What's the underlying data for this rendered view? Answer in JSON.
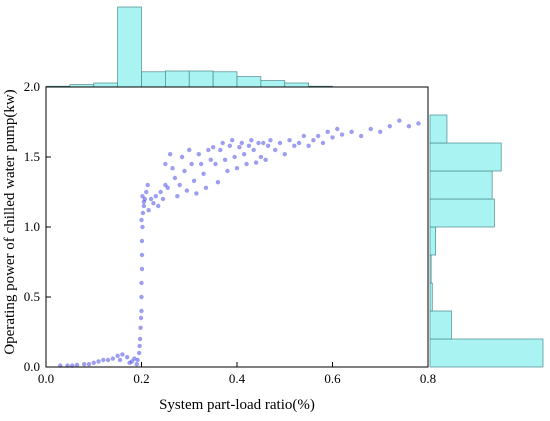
{
  "chart_data": {
    "type": "scatter",
    "title": "",
    "xlabel": "System part-load ratio(%)",
    "ylabel": "Operating power of chilled water pump(kw)",
    "xlim": [
      0.0,
      0.8
    ],
    "ylim": [
      0.0,
      2.0
    ],
    "x_ticks": [
      "0.0",
      "0.2",
      "0.4",
      "0.6",
      "0.8"
    ],
    "y_ticks": [
      "0.0",
      "0.5",
      "1.0",
      "1.5",
      "2.0"
    ],
    "grid": false,
    "colors": {
      "points": "#2727dd",
      "histogram_fill": "#aaf3f3",
      "histogram_edge": "#4a8a8a"
    },
    "x_histogram": {
      "bin_edges": [
        0.0,
        0.05,
        0.1,
        0.15,
        0.2,
        0.25,
        0.3,
        0.35,
        0.4,
        0.45,
        0.5,
        0.55,
        0.6
      ],
      "relative_heights": [
        0.01,
        0.03,
        0.05,
        1.0,
        0.19,
        0.2,
        0.2,
        0.19,
        0.13,
        0.08,
        0.05,
        0.01
      ]
    },
    "y_histogram": {
      "bin_edges": [
        0.0,
        0.2,
        0.4,
        0.6,
        0.8,
        1.0,
        1.2,
        1.4,
        1.6,
        1.8
      ],
      "relative_heights": [
        1.0,
        0.19,
        0.02,
        0.01,
        0.05,
        0.57,
        0.55,
        0.63,
        0.15
      ]
    },
    "series": [
      {
        "points": [
          [
            0.03,
            0.01
          ],
          [
            0.045,
            0.01
          ],
          [
            0.055,
            0.01
          ],
          [
            0.065,
            0.015
          ],
          [
            0.08,
            0.02
          ],
          [
            0.09,
            0.02
          ],
          [
            0.1,
            0.03
          ],
          [
            0.11,
            0.04
          ],
          [
            0.12,
            0.05
          ],
          [
            0.13,
            0.05
          ],
          [
            0.14,
            0.06
          ],
          [
            0.15,
            0.08
          ],
          [
            0.155,
            0.05
          ],
          [
            0.16,
            0.09
          ],
          [
            0.17,
            0.07
          ],
          [
            0.175,
            0.03
          ],
          [
            0.18,
            0.04
          ],
          [
            0.185,
            0.06
          ],
          [
            0.19,
            0.02
          ],
          [
            0.192,
            0.05
          ],
          [
            0.195,
            0.1
          ],
          [
            0.196,
            0.15
          ],
          [
            0.197,
            0.2
          ],
          [
            0.198,
            0.28
          ],
          [
            0.199,
            0.35
          ],
          [
            0.2,
            0.4
          ],
          [
            0.2,
            0.5
          ],
          [
            0.2,
            0.6
          ],
          [
            0.201,
            0.7
          ],
          [
            0.201,
            0.8
          ],
          [
            0.201,
            0.9
          ],
          [
            0.202,
            1.0
          ],
          [
            0.2,
            1.05
          ],
          [
            0.203,
            1.1
          ],
          [
            0.205,
            1.15
          ],
          [
            0.207,
            1.2
          ],
          [
            0.21,
            1.25
          ],
          [
            0.213,
            1.3
          ],
          [
            0.202,
            1.22
          ],
          [
            0.205,
            1.18
          ],
          [
            0.215,
            1.12
          ],
          [
            0.22,
            1.2
          ],
          [
            0.225,
            1.17
          ],
          [
            0.23,
            1.22
          ],
          [
            0.235,
            1.15
          ],
          [
            0.24,
            1.25
          ],
          [
            0.245,
            1.2
          ],
          [
            0.25,
            1.45
          ],
          [
            0.25,
            1.3
          ],
          [
            0.255,
            1.28
          ],
          [
            0.26,
            1.52
          ],
          [
            0.265,
            1.42
          ],
          [
            0.27,
            1.35
          ],
          [
            0.275,
            1.22
          ],
          [
            0.28,
            1.3
          ],
          [
            0.285,
            1.5
          ],
          [
            0.29,
            1.4
          ],
          [
            0.295,
            1.26
          ],
          [
            0.3,
            1.55
          ],
          [
            0.305,
            1.45
          ],
          [
            0.31,
            1.33
          ],
          [
            0.315,
            1.24
          ],
          [
            0.32,
            1.52
          ],
          [
            0.325,
            1.45
          ],
          [
            0.33,
            1.38
          ],
          [
            0.335,
            1.28
          ],
          [
            0.34,
            1.55
          ],
          [
            0.345,
            1.48
          ],
          [
            0.35,
            1.57
          ],
          [
            0.355,
            1.45
          ],
          [
            0.36,
            1.32
          ],
          [
            0.365,
            1.55
          ],
          [
            0.37,
            1.6
          ],
          [
            0.375,
            1.48
          ],
          [
            0.38,
            1.4
          ],
          [
            0.385,
            1.58
          ],
          [
            0.39,
            1.62
          ],
          [
            0.395,
            1.5
          ],
          [
            0.4,
            1.42
          ],
          [
            0.405,
            1.57
          ],
          [
            0.41,
            1.6
          ],
          [
            0.415,
            1.52
          ],
          [
            0.42,
            1.45
          ],
          [
            0.425,
            1.58
          ],
          [
            0.43,
            1.62
          ],
          [
            0.435,
            1.55
          ],
          [
            0.44,
            1.46
          ],
          [
            0.445,
            1.6
          ],
          [
            0.45,
            1.5
          ],
          [
            0.455,
            1.6
          ],
          [
            0.46,
            1.48
          ],
          [
            0.465,
            1.58
          ],
          [
            0.47,
            1.62
          ],
          [
            0.48,
            1.55
          ],
          [
            0.49,
            1.6
          ],
          [
            0.5,
            1.52
          ],
          [
            0.51,
            1.62
          ],
          [
            0.52,
            1.58
          ],
          [
            0.53,
            1.6
          ],
          [
            0.54,
            1.65
          ],
          [
            0.55,
            1.58
          ],
          [
            0.56,
            1.62
          ],
          [
            0.57,
            1.65
          ],
          [
            0.58,
            1.6
          ],
          [
            0.59,
            1.68
          ],
          [
            0.6,
            1.64
          ],
          [
            0.61,
            1.7
          ],
          [
            0.62,
            1.66
          ],
          [
            0.64,
            1.68
          ],
          [
            0.66,
            1.65
          ],
          [
            0.68,
            1.7
          ],
          [
            0.7,
            1.68
          ],
          [
            0.72,
            1.72
          ],
          [
            0.74,
            1.76
          ],
          [
            0.76,
            1.72
          ],
          [
            0.78,
            1.74
          ]
        ]
      }
    ]
  }
}
